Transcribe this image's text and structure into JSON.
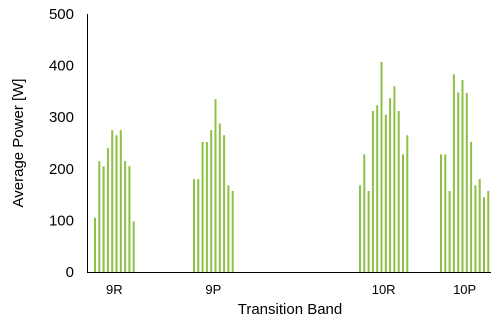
{
  "chart_data": {
    "type": "bar",
    "xlabel": "Transition Band",
    "ylabel": "Average Power [W]",
    "ylim": [
      0,
      500
    ],
    "yticks": [
      0,
      100,
      200,
      300,
      400,
      500
    ],
    "grid": false,
    "legend": "none",
    "bar_color": "#8dc045",
    "groups": [
      {
        "label": "9R",
        "values": [
          105,
          215,
          205,
          240,
          275,
          265,
          275,
          215,
          205,
          98
        ]
      },
      {
        "label": "9P",
        "values": [
          180,
          180,
          252,
          252,
          275,
          335,
          288,
          265,
          168,
          157
        ]
      },
      {
        "label": "10R",
        "values": [
          168,
          228,
          157,
          312,
          323,
          407,
          305,
          337,
          360,
          312,
          228,
          265
        ]
      },
      {
        "label": "10P",
        "values": [
          228,
          228,
          157,
          383,
          348,
          372,
          347,
          252,
          168,
          180,
          145,
          157
        ]
      }
    ]
  }
}
